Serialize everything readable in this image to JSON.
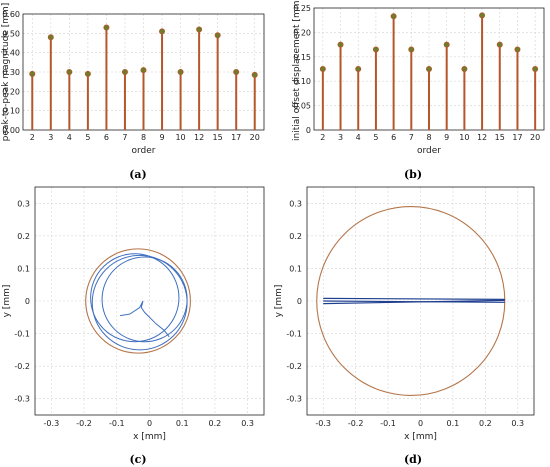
{
  "chart_data": [
    {
      "type": "stem",
      "panel": "(a)",
      "xlabel": "order",
      "ylabel": "peak-to-peak magnitude [mm]",
      "categories": [
        "2",
        "3",
        "4",
        "5",
        "6",
        "7",
        "8",
        "9",
        "10",
        "12",
        "15",
        "17",
        "20"
      ],
      "values": [
        0.29,
        0.48,
        0.3,
        0.29,
        0.53,
        0.3,
        0.31,
        0.51,
        0.3,
        0.52,
        0.49,
        0.3,
        0.285
      ],
      "ylim": [
        0,
        0.6
      ],
      "yticks": [
        "0.00",
        "0.10",
        "0.20",
        "0.30",
        "0.40",
        "0.50",
        "0.60"
      ],
      "ytick_values": [
        0,
        0.1,
        0.2,
        0.3,
        0.4,
        0.5,
        0.6
      ],
      "grid": true,
      "colors": {
        "stem": "#b5572a",
        "marker": "#6e7d2c"
      }
    },
    {
      "type": "stem",
      "panel": "(b)",
      "xlabel": "order",
      "ylabel": "initial offset displacement [mm]",
      "categories": [
        "2",
        "3",
        "4",
        "5",
        "6",
        "7",
        "8",
        "9",
        "10",
        "12",
        "15",
        "17",
        "20"
      ],
      "values": [
        0.125,
        0.175,
        0.125,
        0.165,
        0.233,
        0.165,
        0.125,
        0.175,
        0.125,
        0.235,
        0.175,
        0.165,
        0.125
      ],
      "ylim": [
        0,
        0.25
      ],
      "yticks": [
        "0",
        "0.05",
        "0.10",
        "0.15",
        "0.20",
        "0.25"
      ],
      "ytick_values": [
        0,
        0.05,
        0.1,
        0.15,
        0.2,
        0.25
      ],
      "grid": true,
      "colors": {
        "stem": "#b5572a",
        "marker": "#6e7d2c"
      }
    },
    {
      "type": "line",
      "panel": "(c)",
      "xlabel": "x [mm]",
      "ylabel": "y [mm]",
      "xlim": [
        -0.35,
        0.35
      ],
      "ylim": [
        -0.35,
        0.35
      ],
      "xticks": [
        "-0.3",
        "-0.2",
        "-0.1",
        "0",
        "0.1",
        "0.2",
        "0.3"
      ],
      "xtick_values": [
        -0.3,
        -0.2,
        -0.1,
        0,
        0.1,
        0.2,
        0.3
      ],
      "yticks": [
        "-0.3",
        "-0.2",
        "-0.1",
        "0",
        "0.1",
        "0.2",
        "0.3"
      ],
      "ytick_values": [
        -0.3,
        -0.2,
        -0.1,
        0,
        0.1,
        0.2,
        0.3
      ],
      "grid": true,
      "reference_circle": {
        "cx": -0.035,
        "cy": 0.0,
        "r": 0.16,
        "color": "#b5754a"
      },
      "orbit_circles": [
        {
          "cx": -0.015,
          "cy": 0.005,
          "r": 0.13
        },
        {
          "cx": -0.03,
          "cy": -0.005,
          "r": 0.145
        },
        {
          "cx": -0.045,
          "cy": 0.01,
          "r": 0.135
        }
      ],
      "transient_path": {
        "x": [
          -0.09,
          -0.06,
          -0.03,
          -0.02,
          -0.025,
          -0.015,
          0.0,
          0.02,
          0.045,
          0.06
        ],
        "y": [
          -0.045,
          -0.04,
          -0.02,
          0.0,
          -0.02,
          -0.035,
          -0.05,
          -0.07,
          -0.09,
          -0.11
        ]
      },
      "colors": {
        "orbit": "#3f6fbf",
        "reference": "#b5754a"
      }
    },
    {
      "type": "line",
      "panel": "(d)",
      "xlabel": "x [mm]",
      "ylabel": "y [mm]",
      "xlim": [
        -0.35,
        0.35
      ],
      "ylim": [
        -0.35,
        0.35
      ],
      "xticks": [
        "-0.3",
        "-0.2",
        "-0.1",
        "0",
        "0.1",
        "0.2",
        "0.3"
      ],
      "xtick_values": [
        -0.3,
        -0.2,
        -0.1,
        0,
        0.1,
        0.2,
        0.3
      ],
      "yticks": [
        "-0.3",
        "-0.2",
        "-0.1",
        "0",
        "0.1",
        "0.2",
        "0.3"
      ],
      "ytick_values": [
        -0.3,
        -0.2,
        -0.1,
        0,
        0.1,
        0.2,
        0.3
      ],
      "grid": true,
      "reference_circle": {
        "cx": -0.03,
        "cy": 0.0,
        "r": 0.29,
        "color": "#b5754a"
      },
      "orbit_lines": [
        {
          "x": [
            -0.3,
            0.26
          ],
          "y": [
            0.008,
            0.005
          ]
        },
        {
          "x": [
            -0.3,
            0.26
          ],
          "y": [
            0.0,
            -0.004
          ]
        },
        {
          "x": [
            -0.3,
            0.26
          ],
          "y": [
            -0.008,
            0.002
          ]
        }
      ],
      "colors": {
        "orbit": "#1f3f8f",
        "reference": "#b5754a"
      }
    }
  ]
}
